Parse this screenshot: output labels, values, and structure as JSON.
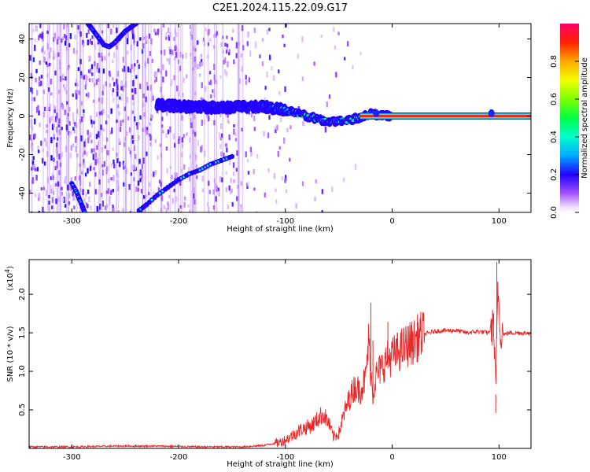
{
  "figure": {
    "title": "C2E1.2024.115.22.09.G17"
  },
  "chart_data": [
    {
      "type": "heatmap",
      "title": "C2E1.2024.115.22.09.G17",
      "xlabel": "Height of straight line (km)",
      "ylabel": "Frequency (Hz)",
      "xlim": [
        -340,
        130
      ],
      "ylim": [
        -50,
        48
      ],
      "x_ticks": [
        -300,
        -200,
        -100,
        0,
        100
      ],
      "x_tick_labels": [
        "-300",
        "-200",
        "-100",
        "0",
        "100"
      ],
      "y_ticks": [
        -40,
        -20,
        0,
        20,
        40
      ],
      "y_tick_labels": [
        "-40",
        "-20",
        "0",
        "20",
        "40"
      ],
      "grid": false,
      "colorbar": {
        "label": "Normalized spectral amplitude",
        "range": [
          0,
          1
        ],
        "ticks": [
          0.0,
          0.2,
          0.4,
          0.6,
          0.8
        ],
        "tick_labels": [
          "0.0",
          "0.2",
          "0.4",
          "0.6",
          "0.8"
        ]
      },
      "ridge": {
        "description_values": "spectral ridge near 0 Hz",
        "x": [
          -220,
          -200,
          -180,
          -160,
          -140,
          -120,
          -100,
          -80,
          -60,
          -40,
          -20,
          0,
          50,
          100,
          130
        ],
        "freq": [
          6,
          5,
          5,
          4,
          5,
          5,
          3,
          0,
          -3,
          -2,
          1,
          0,
          0,
          0,
          0
        ],
        "amplitude": [
          0.25,
          0.2,
          0.25,
          0.2,
          0.3,
          0.35,
          0.45,
          0.5,
          0.45,
          0.5,
          0.6,
          0.95,
          1.0,
          1.0,
          1.0
        ]
      },
      "tracks": [
        {
          "x": [
            -285,
            -282,
            -278,
            -274,
            -270,
            -265,
            -260,
            -255,
            -250,
            -245,
            -240,
            -236
          ],
          "freq": [
            48,
            46,
            43,
            40,
            37,
            36,
            38,
            41,
            44,
            46,
            48,
            50
          ]
        },
        {
          "x": [
            -237,
            -230,
            -220,
            -210,
            -200,
            -190,
            -180,
            -170,
            -160,
            -150
          ],
          "freq": [
            -49,
            -46,
            -41,
            -37,
            -33,
            -30,
            -28,
            -25,
            -23,
            -21
          ]
        },
        {
          "x": [
            -300,
            -296,
            -293,
            -290,
            -288
          ],
          "freq": [
            -35,
            -39,
            -43,
            -47,
            -50
          ]
        }
      ]
    },
    {
      "type": "line",
      "xlabel": "Height of straight line (km)",
      "ylabel": "SNR (10 * v/v)",
      "y_multiplier_label": "(x10",
      "y_multiplier_exponent": "4",
      "y_multiplier_close": ")",
      "xlim": [
        -340,
        130
      ],
      "ylim": [
        0,
        2.45
      ],
      "x_ticks": [
        -300,
        -200,
        -100,
        0,
        100
      ],
      "x_tick_labels": [
        "-300",
        "-200",
        "-100",
        "0",
        "100"
      ],
      "y_ticks": [
        0.5,
        1.0,
        1.5,
        2.0
      ],
      "y_tick_labels": [
        "0.5",
        "1.0",
        "1.5",
        "2.0"
      ],
      "grid": false,
      "series": [
        {
          "color": "#e8292b",
          "x": [
            -340,
            -300,
            -260,
            -220,
            -180,
            -140,
            -120,
            -105,
            -95,
            -85,
            -75,
            -65,
            -60,
            -55,
            -50,
            -45,
            -40,
            -35,
            -30,
            -25,
            -22,
            -20,
            -18,
            -15,
            -10,
            -5,
            0,
            5,
            10,
            15,
            20,
            25,
            30,
            35,
            40,
            50,
            60,
            70,
            80,
            90,
            95,
            97,
            99,
            101,
            105,
            110,
            120,
            130
          ],
          "y": [
            0.02,
            0.02,
            0.03,
            0.03,
            0.02,
            0.02,
            0.04,
            0.08,
            0.15,
            0.25,
            0.3,
            0.45,
            0.35,
            0.15,
            0.2,
            0.45,
            0.65,
            0.8,
            0.75,
            0.9,
            1.4,
            1.0,
            0.7,
            0.95,
            1.05,
            1.15,
            1.2,
            1.25,
            1.3,
            1.35,
            1.38,
            1.45,
            1.48,
            1.5,
            1.52,
            1.53,
            1.53,
            1.5,
            1.52,
            1.5,
            1.6,
            0.7,
            2.15,
            1.55,
            1.48,
            1.5,
            1.5,
            1.49
          ],
          "spikes": [
            {
              "x": -40,
              "y": 0.72
            },
            {
              "x": -30,
              "y": 0.6
            },
            {
              "x": -20,
              "y": 1.89
            },
            {
              "x": -18,
              "y": 1.4
            },
            {
              "x": -4,
              "y": 1.64
            },
            {
              "x": 2,
              "y": 1.3
            },
            {
              "x": 95,
              "y": 1.75
            },
            {
              "x": 97,
              "y": 0.46
            },
            {
              "x": 98,
              "y": 2.42
            },
            {
              "x": 99,
              "y": 1.9
            }
          ]
        }
      ]
    }
  ]
}
